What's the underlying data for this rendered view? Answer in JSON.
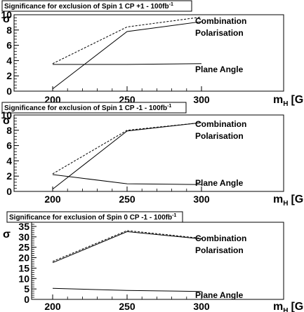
{
  "chart_data": [
    {
      "type": "line",
      "title": "Significance for exclusion of Spin 1 CP +1  - 100fb",
      "title_sup": "-1",
      "xlabel": "m",
      "xlabel_sub": "H",
      "xlabel_unit": "[GeV]",
      "ylabel": "σ",
      "x": [
        200,
        250,
        300
      ],
      "x_ticks": [
        "200",
        "250",
        "300"
      ],
      "ylim": [
        0,
        10
      ],
      "y_ticks": [
        "0",
        "2",
        "4",
        "6",
        "8",
        "10"
      ],
      "series": [
        {
          "name": "Combination",
          "style": "dashed",
          "values": [
            3.6,
            8.4,
            9.7
          ]
        },
        {
          "name": "Polarisation",
          "style": "solid",
          "values": [
            0.3,
            7.8,
            9.1
          ]
        },
        {
          "name": "Plane Angle",
          "style": "solid",
          "values": [
            3.5,
            3.5,
            3.6
          ]
        }
      ]
    },
    {
      "type": "line",
      "title": "Significance for exclusion of Spin 1 CP -1  - 100fb",
      "title_sup": "-1",
      "xlabel": "m",
      "xlabel_sub": "H",
      "xlabel_unit": "[GeV]",
      "ylabel": "σ",
      "x": [
        200,
        250,
        300
      ],
      "x_ticks": [
        "200",
        "250",
        "300"
      ],
      "ylim": [
        0,
        10
      ],
      "y_ticks": [
        "0",
        "2",
        "4",
        "6",
        "8",
        "10"
      ],
      "series": [
        {
          "name": "Combination",
          "style": "dashed",
          "values": [
            2.3,
            8.0,
            9.0
          ]
        },
        {
          "name": "Polarisation",
          "style": "solid",
          "values": [
            0.3,
            7.9,
            9.0
          ]
        },
        {
          "name": "Plane Angle",
          "style": "solid",
          "values": [
            2.2,
            1.0,
            0.9
          ]
        }
      ]
    },
    {
      "type": "line",
      "title": "Significance for exclusion of Spin 0 CP -1  - 100fb",
      "title_sup": "-1",
      "xlabel": "m",
      "xlabel_sub": "H",
      "xlabel_unit": "[GeV]",
      "ylabel": "σ",
      "x": [
        200,
        250,
        300
      ],
      "x_ticks": [
        "200",
        "250",
        "300"
      ],
      "ylim": [
        0,
        37
      ],
      "y_ticks": [
        "0",
        "5",
        "10",
        "15",
        "20",
        "25",
        "30",
        "35"
      ],
      "series": [
        {
          "name": "Combination",
          "style": "dashed",
          "values": [
            18.2,
            33.0,
            29.3
          ]
        },
        {
          "name": "Polarisation",
          "style": "solid",
          "values": [
            17.6,
            32.5,
            29.0
          ]
        },
        {
          "name": "Plane Angle",
          "style": "solid",
          "values": [
            5.3,
            4.3,
            3.8
          ]
        }
      ]
    }
  ]
}
